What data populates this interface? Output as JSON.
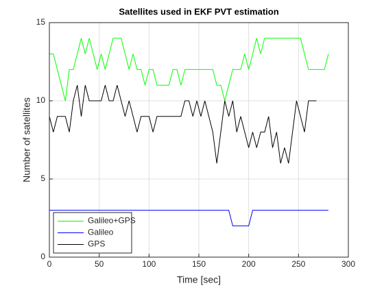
{
  "chart_data": {
    "type": "line",
    "title": "Satellites used in EKF PVT estimation",
    "xlabel": "Time [sec]",
    "ylabel": "Number of satellites",
    "x": [
      0,
      4,
      8,
      12,
      16,
      20,
      24,
      28,
      32,
      36,
      40,
      44,
      48,
      52,
      56,
      60,
      64,
      68,
      72,
      76,
      80,
      84,
      88,
      92,
      96,
      100,
      104,
      108,
      112,
      116,
      120,
      124,
      128,
      132,
      136,
      140,
      144,
      148,
      152,
      156,
      160,
      164,
      168,
      172,
      176,
      180,
      184,
      188,
      192,
      196,
      200,
      204,
      208,
      212,
      216,
      220,
      224,
      228,
      232,
      236,
      240,
      244,
      248,
      252,
      256,
      260,
      264,
      268,
      272,
      276,
      280
    ],
    "series": [
      {
        "name": "Galileo+GPS",
        "color": "#00ff00",
        "values": [
          13,
          13,
          12,
          11,
          10,
          12,
          12,
          13,
          14,
          13,
          14,
          13,
          12,
          13,
          12,
          13,
          14,
          14,
          14,
          13,
          12,
          13,
          12,
          12,
          11,
          12,
          12,
          11,
          11,
          11,
          11,
          12,
          12,
          11,
          12,
          12,
          12,
          12,
          12,
          12,
          12,
          12,
          11,
          11,
          10,
          11,
          12,
          12,
          12,
          13,
          12,
          13,
          14,
          13,
          14,
          14,
          14,
          14,
          14,
          14,
          14,
          14,
          14,
          14,
          13,
          12,
          12,
          12,
          12,
          12,
          13
        ]
      },
      {
        "name": "Galileo",
        "color": "#0000ff",
        "values": [
          3,
          3,
          3,
          3,
          3,
          3,
          3,
          3,
          3,
          3,
          3,
          3,
          3,
          3,
          3,
          3,
          3,
          3,
          3,
          3,
          3,
          3,
          3,
          3,
          3,
          3,
          3,
          3,
          3,
          3,
          3,
          3,
          3,
          3,
          3,
          3,
          3,
          3,
          3,
          3,
          3,
          3,
          3,
          3,
          3,
          3,
          2,
          2,
          2,
          2,
          2,
          3,
          3,
          3,
          3,
          3,
          3,
          3,
          3,
          3,
          3,
          3,
          3,
          3,
          3,
          3,
          3,
          3,
          3,
          3,
          3
        ]
      },
      {
        "name": "GPS",
        "color": "#000000",
        "values": [
          9,
          8,
          9,
          9,
          9,
          8,
          10,
          11,
          9,
          11,
          10,
          10,
          10,
          10,
          11,
          10,
          10,
          11,
          10,
          9,
          10,
          9,
          8,
          9,
          9,
          9,
          8,
          9,
          9,
          9,
          9,
          9,
          9,
          9,
          10,
          10,
          9,
          10,
          9,
          10,
          9,
          8,
          6,
          8,
          10,
          9,
          10,
          8,
          9,
          8,
          7,
          8,
          7,
          8,
          8,
          9,
          7,
          8,
          6,
          7,
          6,
          8,
          10,
          9,
          8,
          10,
          10,
          10,
          null,
          null,
          null
        ]
      }
    ],
    "xlim": [
      0,
      300
    ],
    "xticks": [
      0,
      50,
      100,
      150,
      200,
      250,
      300
    ],
    "ylim": [
      0,
      15
    ],
    "yticks": [
      0,
      5,
      10,
      15
    ],
    "grid": true,
    "legend": "lower left"
  }
}
